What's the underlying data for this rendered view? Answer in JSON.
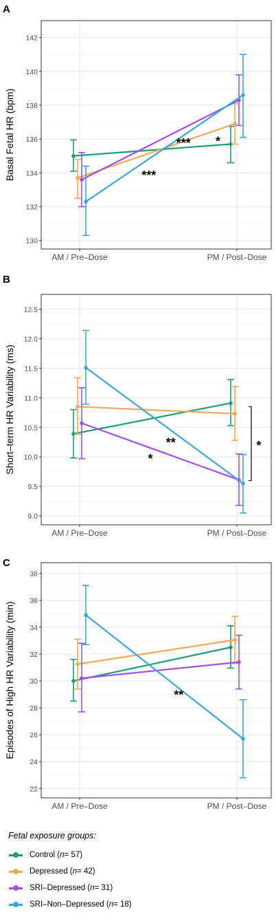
{
  "colors": {
    "Control": "#1b9e77",
    "Depressed": "#f5a855",
    "SRI-Depressed": "#a54cf0",
    "SRI-Non-Depressed": "#3aa6dc"
  },
  "legend": {
    "title": "Fetal exposure groups:",
    "items": [
      {
        "group": "Control",
        "label": "Control (",
        "n": "n",
        "rest": " = 57)"
      },
      {
        "group": "Depressed",
        "label": "Depressed (",
        "n": "n",
        "rest": " = 42)"
      },
      {
        "group": "SRI-Depressed",
        "label": "SRI–Depressed (",
        "n": "n",
        "rest": " = 31)"
      },
      {
        "group": "SRI-Non-Depressed",
        "label": "SRI–Non–Depressed (",
        "n": "n",
        "rest": " = 18)"
      }
    ]
  },
  "chart_data": [
    {
      "panel": "A",
      "type": "line",
      "ylabel": "Basal Fetal HR (bpm)",
      "categories": [
        "AM / Pre–Dose",
        "PM / Post–Dose"
      ],
      "ylim": [
        129.5,
        143
      ],
      "yticks": [
        130,
        132,
        134,
        136,
        138,
        140,
        142
      ],
      "grid": true,
      "series": [
        {
          "name": "Control",
          "values": [
            135.0,
            135.7
          ],
          "err_low": [
            134.1,
            134.6
          ],
          "err_high": [
            135.95,
            136.75
          ]
        },
        {
          "name": "Depressed",
          "values": [
            133.7,
            136.9
          ],
          "err_low": [
            132.5,
            135.7
          ],
          "err_high": [
            134.8,
            138.1
          ]
        },
        {
          "name": "SRI-Depressed",
          "values": [
            133.6,
            138.3
          ],
          "err_low": [
            132.0,
            136.8
          ],
          "err_high": [
            135.2,
            139.8
          ]
        },
        {
          "name": "SRI-Non-Depressed",
          "values": [
            132.3,
            138.6
          ],
          "err_low": [
            130.3,
            136.1
          ],
          "err_high": [
            134.4,
            141.0
          ]
        }
      ],
      "annotations": [
        {
          "text": "***",
          "x": 0.66,
          "y": 135.8
        },
        {
          "text": "*",
          "x": 0.88,
          "y": 135.9
        },
        {
          "text": "***",
          "x": 0.44,
          "y": 133.9
        }
      ]
    },
    {
      "panel": "B",
      "type": "line",
      "ylabel": "Short–term HR Variability (ms)",
      "categories": [
        "AM / Pre–Dose",
        "PM / Post–Dose"
      ],
      "ylim": [
        8.85,
        12.75
      ],
      "yticks": [
        9.0,
        9.5,
        10.0,
        10.5,
        11.0,
        11.5,
        12.0,
        12.5
      ],
      "grid": true,
      "series": [
        {
          "name": "Control",
          "values": [
            10.39,
            10.91
          ],
          "err_low": [
            9.98,
            10.53
          ],
          "err_high": [
            10.8,
            11.31
          ]
        },
        {
          "name": "Depressed",
          "values": [
            10.85,
            10.73
          ],
          "err_low": [
            10.38,
            10.28
          ],
          "err_high": [
            11.34,
            11.19
          ]
        },
        {
          "name": "SRI-Depressed",
          "values": [
            10.57,
            9.61
          ],
          "err_low": [
            9.97,
            9.18
          ],
          "err_high": [
            11.17,
            10.05
          ]
        },
        {
          "name": "SRI-Non-Depressed",
          "values": [
            11.51,
            9.55
          ],
          "err_low": [
            10.89,
            9.05
          ],
          "err_high": [
            12.14,
            10.04
          ]
        }
      ],
      "annotations": [
        {
          "text": "**",
          "x": 0.58,
          "y": 10.25
        },
        {
          "text": "*",
          "x": 0.45,
          "y": 9.98
        },
        {
          "text": "*",
          "x": 1.14,
          "y": 10.2
        }
      ],
      "bracket": {
        "from": 10.85,
        "to": 9.6,
        "label": "*"
      }
    },
    {
      "panel": "C",
      "type": "line",
      "ylabel": "Episodes of High HR Variability (min)",
      "categories": [
        "AM / Pre–Dose",
        "PM / Post–Dose"
      ],
      "ylim": [
        21.3,
        38.8
      ],
      "yticks": [
        22,
        24,
        26,
        28,
        30,
        32,
        34,
        36,
        38
      ],
      "grid": true,
      "series": [
        {
          "name": "Control",
          "values": [
            30.0,
            32.5
          ],
          "err_low": [
            28.5,
            30.95
          ],
          "err_high": [
            31.6,
            34.1
          ]
        },
        {
          "name": "Depressed",
          "values": [
            31.25,
            33.05
          ],
          "err_low": [
            29.4,
            31.3
          ],
          "err_high": [
            33.1,
            34.8
          ]
        },
        {
          "name": "SRI-Depressed",
          "values": [
            30.2,
            31.4
          ],
          "err_low": [
            27.7,
            29.4
          ],
          "err_high": [
            32.8,
            33.4
          ]
        },
        {
          "name": "SRI-Non-Depressed",
          "values": [
            34.9,
            25.7
          ],
          "err_low": [
            32.7,
            22.8
          ],
          "err_high": [
            37.1,
            28.6
          ]
        }
      ],
      "annotations": [
        {
          "text": "**",
          "x": 0.63,
          "y": 29.0
        }
      ]
    }
  ],
  "panels_letters": [
    "A",
    "B",
    "C"
  ]
}
